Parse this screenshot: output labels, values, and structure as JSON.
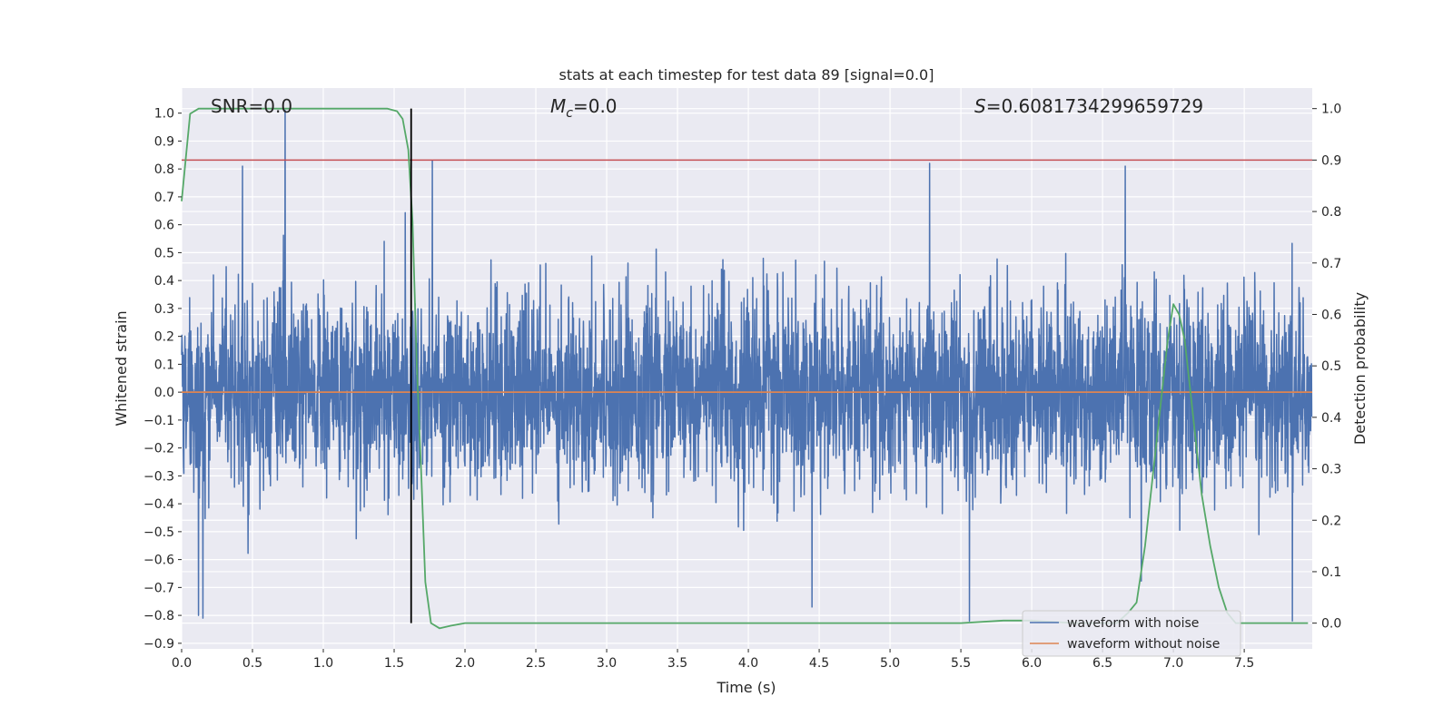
{
  "chart_data": {
    "type": "line",
    "title": "stats at each timestep for test data 89 [signal=0.0]",
    "xlabel": "Time (s)",
    "ylabel": "Whitened strain",
    "y2label": "Detection probability",
    "xlim": [
      0.0,
      7.98
    ],
    "ylim": [
      -0.92,
      1.09
    ],
    "y2lim": [
      -0.05,
      1.04
    ],
    "xticks": [
      "0.0",
      "0.5",
      "1.0",
      "1.5",
      "2.0",
      "2.5",
      "3.0",
      "3.5",
      "4.0",
      "4.5",
      "5.0",
      "5.5",
      "6.0",
      "6.5",
      "7.0",
      "7.5"
    ],
    "xtick_values": [
      0.0,
      0.5,
      1.0,
      1.5,
      2.0,
      2.5,
      3.0,
      3.5,
      4.0,
      4.5,
      5.0,
      5.5,
      6.0,
      6.5,
      7.0,
      7.5
    ],
    "yticks": [
      "1.0",
      "0.9",
      "0.8",
      "0.7",
      "0.6",
      "0.5",
      "0.4",
      "0.3",
      "0.2",
      "0.1",
      "0.0",
      "−0.1",
      "−0.2",
      "−0.3",
      "−0.4",
      "−0.5",
      "−0.6",
      "−0.7",
      "−0.8",
      "−0.9"
    ],
    "ytick_values": [
      1.0,
      0.9,
      0.8,
      0.7,
      0.6,
      0.5,
      0.4,
      0.3,
      0.2,
      0.1,
      0.0,
      -0.1,
      -0.2,
      -0.3,
      -0.4,
      -0.5,
      -0.6,
      -0.7,
      -0.8,
      -0.9
    ],
    "y2ticks": [
      "1.0",
      "0.9",
      "0.8",
      "0.7",
      "0.6",
      "0.5",
      "0.4",
      "0.3",
      "0.2",
      "0.1",
      "0.0"
    ],
    "y2tick_values": [
      1.0,
      0.9,
      0.8,
      0.7,
      0.6,
      0.5,
      0.4,
      0.3,
      0.2,
      0.1,
      0.0
    ],
    "grid": true,
    "legend_position": "bottom-right",
    "annotations": {
      "snr": "SNR=0.0",
      "mc": "M_c=0.0",
      "mc_symbol": "M",
      "mc_sub": "c",
      "mc_value": "=0.0",
      "s_symbol": "S",
      "s_value": "=0.6081734299659729"
    },
    "threshold": {
      "value": 0.9,
      "axis": "right",
      "color": "#c44e52"
    },
    "vline": {
      "x": 1.62,
      "color": "#000000"
    },
    "series": [
      {
        "name": "waveform with noise",
        "color": "#4c72b0",
        "axis": "left",
        "sample_rate": 512,
        "peaks": [
          {
            "x": 0.73,
            "y": 1.01
          },
          {
            "x": 0.43,
            "y": 0.81
          },
          {
            "x": 1.77,
            "y": 0.83
          },
          {
            "x": 5.28,
            "y": 0.82
          },
          {
            "x": 6.66,
            "y": 0.81
          },
          {
            "x": 0.12,
            "y": -0.8
          },
          {
            "x": 0.15,
            "y": -0.81
          },
          {
            "x": 5.56,
            "y": -0.82
          },
          {
            "x": 7.84,
            "y": -0.82
          },
          {
            "x": 4.45,
            "y": -0.77
          }
        ]
      },
      {
        "name": "waveform without noise",
        "color": "#dd8452",
        "axis": "left",
        "x": [
          0.0,
          7.98
        ],
        "y": [
          0.0,
          0.0
        ]
      },
      {
        "color": "#55a868",
        "axis": "right",
        "x": [
          0.0,
          0.06,
          0.12,
          0.2,
          0.4,
          0.8,
          1.2,
          1.45,
          1.52,
          1.56,
          1.6,
          1.63,
          1.66,
          1.69,
          1.72,
          1.76,
          1.82,
          1.9,
          2.0,
          3.0,
          4.0,
          5.0,
          5.5,
          5.8,
          6.0,
          6.3,
          6.5,
          6.6,
          6.68,
          6.74,
          6.8,
          6.86,
          6.92,
          6.96,
          7.0,
          7.04,
          7.08,
          7.12,
          7.16,
          7.2,
          7.26,
          7.32,
          7.38,
          7.44,
          7.5,
          7.7,
          7.95
        ],
        "y": [
          0.82,
          0.99,
          1.0,
          1.0,
          1.0,
          1.0,
          1.0,
          1.0,
          0.995,
          0.98,
          0.92,
          0.78,
          0.5,
          0.3,
          0.08,
          0.0,
          -0.01,
          -0.005,
          0.0,
          0.0,
          0.0,
          0.0,
          0.0,
          0.005,
          0.005,
          0.0,
          0.0,
          0.0,
          0.02,
          0.04,
          0.15,
          0.3,
          0.45,
          0.55,
          0.62,
          0.6,
          0.55,
          0.45,
          0.35,
          0.25,
          0.15,
          0.07,
          0.02,
          0.0,
          0.0,
          0.0,
          0.0
        ]
      }
    ]
  }
}
